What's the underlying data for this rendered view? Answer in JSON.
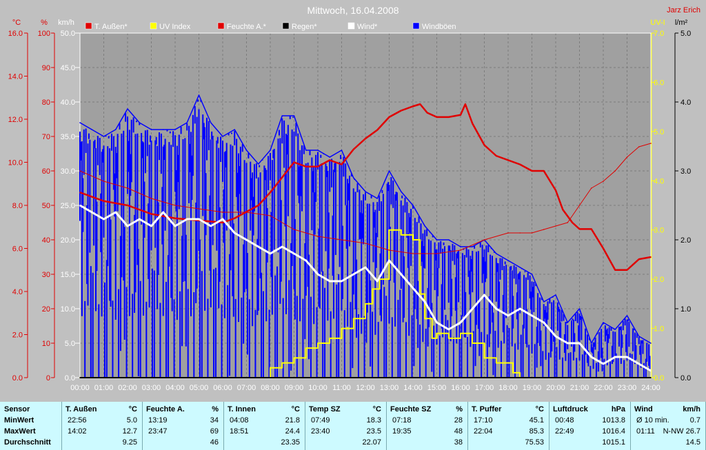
{
  "header": {
    "title": "Mittwoch, 16.04.2008",
    "author": "Jarz Erich"
  },
  "colors": {
    "background": "#c0c0c0",
    "plot_bg": "#a0a0a0",
    "grid": "#7c7c7c",
    "temp": "#e00000",
    "uv": "#ffff00",
    "humidity": "#e00000",
    "rain": "#000000",
    "wind": "#ffffff",
    "gusts": "#0000ff",
    "table_bg": "#cdfaff"
  },
  "axes": {
    "temp": {
      "unit": "°C",
      "ticks": [
        "16.0",
        "14.0",
        "12.0",
        "10.0",
        "8.0",
        "6.0",
        "4.0",
        "2.0",
        "0.0"
      ],
      "min": 0,
      "max": 16
    },
    "humidity": {
      "unit": "%",
      "ticks": [
        "100",
        "90",
        "80",
        "70",
        "60",
        "50",
        "40",
        "30",
        "20",
        "10",
        "0"
      ],
      "min": 0,
      "max": 100
    },
    "wind": {
      "unit": "km/h",
      "ticks": [
        "50.0",
        "45.0",
        "40.0",
        "35.0",
        "30.0",
        "25.0",
        "20.0",
        "15.0",
        "10.0",
        "5.0",
        "0.0"
      ],
      "min": 0,
      "max": 50
    },
    "uv": {
      "unit": "UV-I",
      "ticks": [
        "7.0",
        "6.0",
        "5.0",
        "4.0",
        "3.0",
        "2.0",
        "1.0",
        "0.0"
      ],
      "min": 0,
      "max": 7
    },
    "rain": {
      "unit": "l/m²",
      "ticks": [
        "5.0",
        "4.0",
        "3.0",
        "2.0",
        "1.0",
        "0.0"
      ],
      "min": 0,
      "max": 5
    },
    "x": {
      "ticks": [
        "00:00",
        "01:00",
        "02:00",
        "03:00",
        "04:00",
        "05:00",
        "06:00",
        "07:00",
        "08:00",
        "09:00",
        "10:00",
        "11:00",
        "12:00",
        "13:00",
        "14:00",
        "15:00",
        "16:00",
        "17:00",
        "18:00",
        "19:00",
        "20:00",
        "21:00",
        "22:00",
        "23:00",
        "24:00"
      ],
      "min": 0,
      "max": 24
    }
  },
  "legend": [
    {
      "label": "T. Außen*",
      "color": "#e00000"
    },
    {
      "label": "UV Index",
      "color": "#ffff00"
    },
    {
      "label": "Feuchte A.*",
      "color": "#e00000"
    },
    {
      "label": "Regen*",
      "color": "#000000"
    },
    {
      "label": "Wind*",
      "color": "#ffffff"
    },
    {
      "label": "Windböen",
      "color": "#0000ff"
    }
  ],
  "chart_data": {
    "type": "line",
    "title": "Mittwoch, 16.04.2008",
    "x_unit": "hour",
    "grid": true,
    "legend_position": "top",
    "series": [
      {
        "name": "T. Außen*",
        "axis": "temp",
        "x": [
          0,
          1,
          2,
          3,
          4,
          5,
          6,
          6.5,
          7,
          7.5,
          8,
          8.5,
          9,
          9.5,
          10,
          10.5,
          11,
          11.5,
          12,
          12.5,
          13,
          13.5,
          14,
          14.3,
          14.6,
          15,
          15.5,
          16,
          16.2,
          16.5,
          17,
          17.5,
          18,
          18.5,
          19,
          19.5,
          20,
          20.3,
          20.7,
          21,
          21.5,
          22,
          22.5,
          23,
          23.5,
          24
        ],
        "values": [
          8.6,
          8.2,
          8.0,
          7.6,
          7.4,
          7.3,
          7.2,
          7.4,
          7.7,
          8.0,
          8.6,
          9.3,
          10.0,
          9.8,
          9.8,
          10.1,
          9.9,
          10.6,
          11.1,
          11.5,
          12.1,
          12.4,
          12.6,
          12.7,
          12.3,
          12.1,
          12.1,
          12.2,
          12.7,
          11.8,
          10.8,
          10.3,
          10.1,
          9.9,
          9.6,
          9.6,
          8.7,
          7.8,
          7.2,
          6.9,
          6.9,
          6.0,
          5.0,
          5.0,
          5.5,
          5.6
        ]
      },
      {
        "name": "Feuchte A.*",
        "axis": "humidity",
        "x": [
          0,
          1,
          2,
          3,
          4,
          5,
          6,
          7,
          8,
          9,
          10,
          11,
          12,
          13,
          14,
          14.5,
          15,
          16,
          17,
          18,
          18.5,
          19,
          19.5,
          20,
          20.5,
          21,
          21.5,
          22,
          22.5,
          23,
          23.5,
          24
        ],
        "values": [
          60,
          57,
          55,
          52,
          50,
          49,
          48,
          48,
          47,
          43,
          41,
          40,
          39,
          37,
          36,
          36,
          36,
          37,
          40,
          42,
          42,
          42,
          43,
          44,
          45,
          50,
          55,
          57,
          60,
          64,
          67,
          68
        ]
      },
      {
        "name": "Wind*",
        "axis": "wind",
        "x": [
          0,
          0.5,
          1,
          1.5,
          2,
          2.5,
          3,
          3.5,
          4,
          4.5,
          5,
          5.5,
          6,
          6.5,
          7,
          7.5,
          8,
          8.5,
          9,
          9.5,
          10,
          10.5,
          11,
          11.5,
          12,
          12.5,
          13,
          13.5,
          14,
          14.5,
          15,
          15.5,
          16,
          16.5,
          17,
          17.5,
          18,
          18.5,
          19,
          19.5,
          20,
          20.5,
          21,
          21.5,
          22,
          22.5,
          23,
          23.5,
          24
        ],
        "values": [
          25,
          24,
          23,
          24,
          22,
          23,
          22,
          24,
          22,
          23,
          23,
          22,
          23,
          21,
          20,
          19,
          18,
          19,
          18,
          17,
          15,
          14,
          14,
          15,
          16,
          14,
          17,
          15,
          13,
          11,
          8,
          7,
          8,
          10,
          12,
          10,
          9,
          10,
          9,
          8,
          6,
          5,
          5,
          3,
          2,
          3,
          3,
          2,
          1
        ]
      },
      {
        "name": "Windböen",
        "axis": "wind",
        "x": [
          0,
          0.5,
          1,
          1.5,
          2,
          2.5,
          3,
          3.5,
          4,
          4.5,
          5,
          5.5,
          6,
          6.5,
          7,
          7.5,
          8,
          8.5,
          9,
          9.5,
          10,
          10.5,
          11,
          11.5,
          12,
          12.5,
          13,
          13.5,
          14,
          14.5,
          15,
          15.5,
          16,
          16.5,
          17,
          17.5,
          18,
          18.5,
          19,
          19.5,
          20,
          20.5,
          21,
          21.5,
          22,
          22.5,
          23,
          23.5,
          24
        ],
        "values": [
          37,
          36,
          35,
          36,
          39,
          37,
          36,
          36,
          36,
          37,
          41,
          37,
          35,
          36,
          33,
          31,
          33,
          38,
          38,
          33,
          33,
          32,
          33,
          29,
          27,
          26,
          30,
          27,
          25,
          22,
          20,
          20,
          19,
          19,
          20,
          18,
          17,
          16,
          15,
          11,
          12,
          8,
          10,
          5,
          8,
          7,
          9,
          6,
          5
        ]
      },
      {
        "name": "UV Index",
        "axis": "uv",
        "x": [
          0,
          7.5,
          8,
          8.5,
          9,
          9.5,
          10,
          10.5,
          11,
          11.5,
          12,
          12.3,
          12.6,
          13,
          13.5,
          14,
          14.3,
          14.5,
          14.8,
          15,
          15.5,
          16,
          16.5,
          17,
          17.5,
          18,
          18.2,
          18.5,
          19,
          24
        ],
        "values": [
          0,
          0,
          0.2,
          0.3,
          0.4,
          0.6,
          0.7,
          0.8,
          1.0,
          1.2,
          1.5,
          1.8,
          2.0,
          3.0,
          2.9,
          2.8,
          1.7,
          1.2,
          0.8,
          0.9,
          0.8,
          0.9,
          0.7,
          0.4,
          0.3,
          0.3,
          0.1,
          0,
          0,
          0
        ]
      },
      {
        "name": "Regen*",
        "axis": "rain",
        "x": [
          0,
          24
        ],
        "values": [
          0,
          0
        ]
      }
    ]
  },
  "table": {
    "sensor_col": {
      "title": "Sensor",
      "rows": [
        "MinWert",
        "MaxWert",
        "Durchschnitt"
      ]
    },
    "columns": [
      {
        "name": "T. Außen",
        "unit": "°C",
        "times": [
          "22:56",
          "14:02",
          ""
        ],
        "values": [
          "5.0",
          "12.7",
          "9.25"
        ]
      },
      {
        "name": "Feuchte A.",
        "unit": "%",
        "times": [
          "13:19",
          "23:47",
          ""
        ],
        "values": [
          "34",
          "69",
          "46"
        ]
      },
      {
        "name": "T. Innen",
        "unit": "°C",
        "times": [
          "04:08",
          "18:51",
          ""
        ],
        "values": [
          "21.8",
          "24.4",
          "23.35"
        ]
      },
      {
        "name": "Temp SZ",
        "unit": "°C",
        "times": [
          "07:49",
          "23:40",
          ""
        ],
        "values": [
          "18.3",
          "23.5",
          "22.07"
        ]
      },
      {
        "name": "Feuchte SZ",
        "unit": "%",
        "times": [
          "07:18",
          "19:35",
          ""
        ],
        "values": [
          "28",
          "48",
          "38"
        ]
      },
      {
        "name": "T. Puffer",
        "unit": "°C",
        "times": [
          "17:10",
          "22:04",
          ""
        ],
        "values": [
          "45.1",
          "85.3",
          "75.53"
        ]
      },
      {
        "name": "Luftdruck",
        "unit": "hPa",
        "times": [
          "00:48",
          "22:49",
          ""
        ],
        "values": [
          "1013.8",
          "1016.4",
          "1015.1"
        ]
      },
      {
        "name": "Wind",
        "unit": "km/h",
        "times": [
          "Ø 10 min.",
          "01:11",
          ""
        ],
        "values": [
          "0.7",
          "N-NW 26.7",
          "14.5"
        ]
      }
    ]
  }
}
